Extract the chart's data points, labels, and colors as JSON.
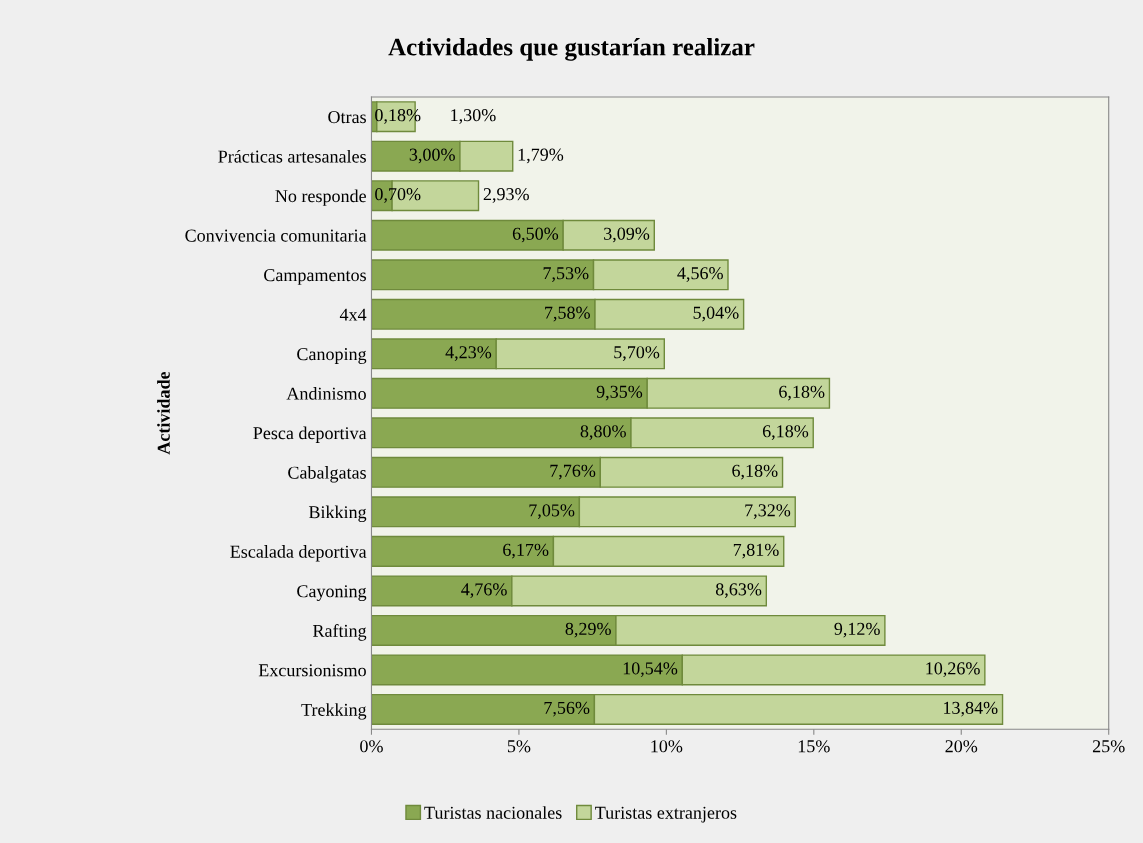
{
  "chart_data": {
    "type": "bar",
    "orientation": "horizontal",
    "stacked": true,
    "title": "Actividades que gustarían realizar",
    "ylabel": "Actividade",
    "categories": [
      "Otras",
      "Prácticas artesanales",
      "No responde",
      "Convivencia comunitaria",
      "Campamentos",
      "4x4",
      "Canoping",
      "Andinismo",
      "Pesca deportiva",
      "Cabalgatas",
      "Bikking",
      "Escalada deportiva",
      "Cayoning",
      "Rafting",
      "Excursionismo",
      "Trekking"
    ],
    "series": [
      {
        "name": "Turistas nacionales",
        "color": "#8aa852",
        "values": [
          0.18,
          3.0,
          0.7,
          6.5,
          7.53,
          7.58,
          4.23,
          9.35,
          8.8,
          7.76,
          7.05,
          6.17,
          4.76,
          8.29,
          10.54,
          7.56
        ],
        "value_labels": [
          "0,18%",
          "3,00%",
          "0,70%",
          "6,50%",
          "7,53%",
          "7,58%",
          "4,23%",
          "9,35%",
          "8,80%",
          "7,76%",
          "7,05%",
          "6,17%",
          "4,76%",
          "8,29%",
          "10,54%",
          "7,56%"
        ]
      },
      {
        "name": "Turistas extranjeros",
        "color": "#c3d69b",
        "values": [
          1.3,
          1.79,
          2.93,
          3.09,
          4.56,
          5.04,
          5.7,
          6.18,
          6.18,
          6.18,
          7.32,
          7.81,
          8.63,
          9.12,
          10.26,
          13.84
        ],
        "value_labels": [
          "1,30%",
          "1,79%",
          "2,93%",
          "3,09%",
          "4,56%",
          "5,04%",
          "5,70%",
          "6,18%",
          "6,18%",
          "6,18%",
          "7,32%",
          "7,81%",
          "8,63%",
          "9,12%",
          "10,26%",
          "13,84%"
        ]
      }
    ],
    "xlim": [
      0,
      25
    ],
    "xticks": [
      {
        "value": 0,
        "label": "0%"
      },
      {
        "value": 5,
        "label": "5%"
      },
      {
        "value": 10,
        "label": "10%"
      },
      {
        "value": 15,
        "label": "15%"
      },
      {
        "value": 20,
        "label": "20%"
      },
      {
        "value": 25,
        "label": "25%"
      }
    ],
    "grid": false,
    "legend": "bottom"
  }
}
